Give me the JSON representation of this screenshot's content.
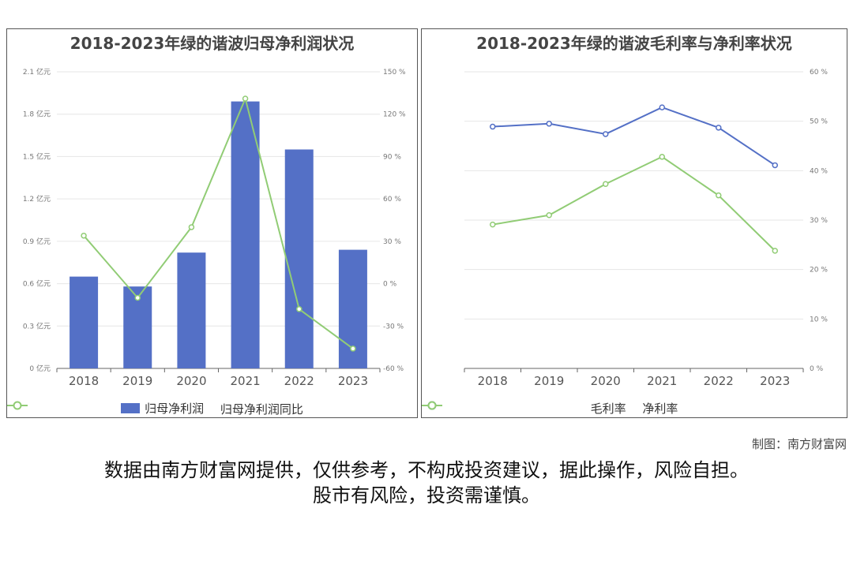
{
  "colors": {
    "bar": "#5470c6",
    "green": "#91cc75",
    "blue_line": "#5470c6",
    "grid": "#e6e6e6",
    "axis": "#666666"
  },
  "chart_data": [
    {
      "type": "bar",
      "title": "2018-2023年绿的谐波归母净利润状况",
      "categories": [
        "2018",
        "2019",
        "2020",
        "2021",
        "2022",
        "2023"
      ],
      "series": [
        {
          "name": "归母净利润",
          "type": "bar",
          "axis": "left",
          "values": [
            0.65,
            0.58,
            0.82,
            1.89,
            1.55,
            0.84
          ]
        },
        {
          "name": "归母净利润同比",
          "type": "line",
          "axis": "right",
          "values": [
            34,
            -10,
            40,
            131,
            -18,
            -46
          ]
        }
      ],
      "y_left": {
        "min": 0,
        "max": 2.1,
        "ticks": [
          "0 亿元",
          "0.3 亿元",
          "0.6 亿元",
          "0.9 亿元",
          "1.2 亿元",
          "1.5 亿元",
          "1.8 亿元",
          "2.1 亿元"
        ]
      },
      "y_right": {
        "min": -60,
        "max": 150,
        "ticks": [
          "-60 %",
          "-30 %",
          "0 %",
          "30 %",
          "60 %",
          "90 %",
          "120 %",
          "150 %"
        ]
      },
      "grid": true,
      "legend": "bottom"
    },
    {
      "type": "line",
      "title": "2018-2023年绿的谐波毛利率与净利率状况",
      "categories": [
        "2018",
        "2019",
        "2020",
        "2021",
        "2022",
        "2023"
      ],
      "series": [
        {
          "name": "毛利率",
          "values": [
            48.9,
            49.5,
            47.4,
            52.8,
            48.7,
            41.1
          ]
        },
        {
          "name": "净利率",
          "values": [
            29.1,
            31.0,
            37.3,
            42.8,
            35.0,
            23.8
          ]
        }
      ],
      "y_right": {
        "min": 0,
        "max": 60,
        "ticks": [
          "0 %",
          "10 %",
          "20 %",
          "30 %",
          "40 %",
          "50 %",
          "60 %"
        ]
      },
      "grid": true,
      "legend": "bottom"
    }
  ],
  "credit": "制图：南方财富网",
  "disclaimer": {
    "line1": "数据由南方财富网提供，仅供参考，不构成投资建议，据此操作，风险自担。",
    "line2": "股市有风险，投资需谨慎。"
  }
}
